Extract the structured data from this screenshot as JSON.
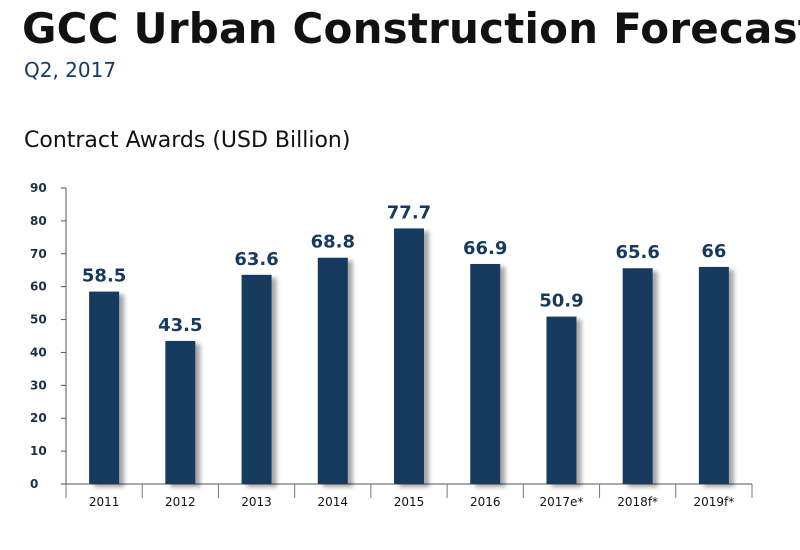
{
  "header": {
    "title": "GCC Urban Construction Forecast",
    "subtitle": "Q2, 2017"
  },
  "chart_data": {
    "type": "bar",
    "title": "Contract Awards (USD Billion)",
    "categories": [
      "2011",
      "2012",
      "2013",
      "2014",
      "2015",
      "2016",
      "2017e*",
      "2018f*",
      "2019f*"
    ],
    "values": [
      58.5,
      43.5,
      63.6,
      68.8,
      77.7,
      66.9,
      50.9,
      65.6,
      66
    ],
    "data_labels": [
      "58.5",
      "43.5",
      "63.6",
      "68.8",
      "77.7",
      "66.9",
      "50.9",
      "65.6",
      "66"
    ],
    "ylim": [
      0,
      90
    ],
    "yticks": [
      0,
      10,
      20,
      30,
      40,
      50,
      60,
      70,
      80,
      90
    ],
    "xlabel": "",
    "ylabel": "",
    "grid": false,
    "colors": {
      "bar": "#163a5f"
    }
  }
}
